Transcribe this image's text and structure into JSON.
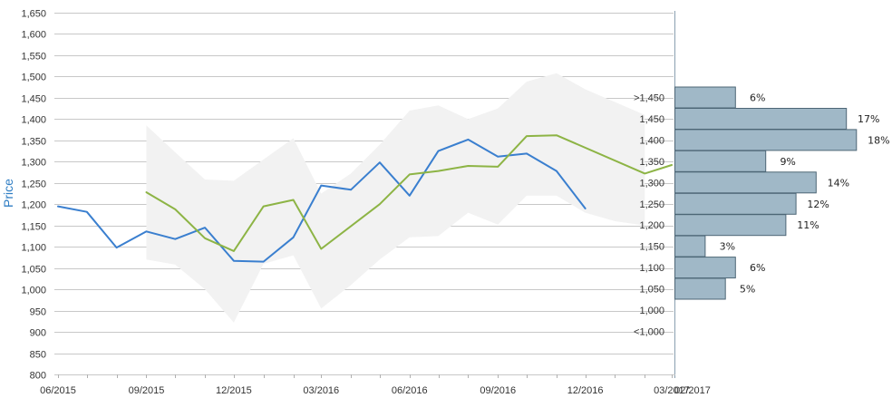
{
  "chart_data": {
    "type": "line",
    "ylabel": "Price",
    "ylim": [
      800,
      1650
    ],
    "y_ticks": [
      "800",
      "850",
      "900",
      "950",
      "1,000",
      "1,050",
      "1,100",
      "1,150",
      "1,200",
      "1,250",
      "1,300",
      "1,350",
      "1,400",
      "1,450",
      "1,500",
      "1,550",
      "1,600",
      "1,650"
    ],
    "x_ticks": [
      "06/2015",
      "09/2015",
      "12/2015",
      "03/2016",
      "06/2016",
      "09/2016",
      "12/2016",
      "03/2017"
    ],
    "x_extra_label": "02/2017",
    "x_start": "2015-06-01",
    "x_end": "2017-03-01",
    "grid": true,
    "colors": {
      "price": "#3a7fcf",
      "estimate": "#8db445",
      "band": "#f2f2f2",
      "hist_bar": "#a0b8c7",
      "hist_border": "#4d6676",
      "ylabel": "#2f7ec4"
    },
    "series": [
      {
        "key": "price",
        "x": [
          "2015-06",
          "2015-07",
          "2015-08",
          "2015-09",
          "2015-10",
          "2015-11",
          "2015-12",
          "2016-01",
          "2016-02",
          "2016-03",
          "2016-04",
          "2016-05",
          "2016-06",
          "2016-07",
          "2016-08",
          "2016-09",
          "2016-10",
          "2016-11",
          "2016-12"
        ],
        "values": [
          1195,
          1182,
          1098,
          1136,
          1118,
          1145,
          1067,
          1065,
          1122,
          1244,
          1234,
          1298,
          1220,
          1325,
          1352,
          1312,
          1319,
          1278,
          1190
        ]
      },
      {
        "key": "estimate",
        "x": [
          "2015-09",
          "2015-10",
          "2015-11",
          "2015-12",
          "2016-01",
          "2016-02",
          "2016-03",
          "2016-05",
          "2016-06",
          "2016-07",
          "2016-08",
          "2016-09",
          "2016-10",
          "2016-11",
          "2017-02",
          "2017-03"
        ],
        "values": [
          1228,
          1188,
          1120,
          1090,
          1195,
          1210,
          1095,
          1200,
          1270,
          1278,
          1290,
          1288,
          1360,
          1362,
          1272,
          1292
        ]
      }
    ],
    "band": {
      "x": [
        "2015-09",
        "2015-10",
        "2015-11",
        "2015-12",
        "2016-01",
        "2016-02",
        "2016-03",
        "2016-04",
        "2016-05",
        "2016-06",
        "2016-07",
        "2016-08",
        "2016-09",
        "2016-10",
        "2016-11",
        "2016-12",
        "2017-01",
        "2017-02"
      ],
      "upper": [
        1385,
        1322,
        1258,
        1255,
        1305,
        1355,
        1225,
        1272,
        1340,
        1420,
        1432,
        1400,
        1425,
        1488,
        1508,
        1470,
        1440,
        1410
      ],
      "lower": [
        1070,
        1058,
        1000,
        922,
        1060,
        1080,
        955,
        1010,
        1070,
        1122,
        1125,
        1180,
        1152,
        1220,
        1220,
        1180,
        1160,
        1150
      ]
    },
    "histogram": {
      "categories": [
        ">1,450",
        "1,450",
        "1,400",
        "1,350",
        "1,300",
        "1,250",
        "1,200",
        "1,150",
        "1,100",
        "1,050",
        "1,000",
        "<1,000"
      ],
      "values": [
        6,
        17,
        18,
        9,
        14,
        12,
        11,
        3,
        6,
        5,
        0,
        0
      ],
      "labels": [
        "6%",
        "17%",
        "18%",
        "9%",
        "14%",
        "12%",
        "11%",
        "3%",
        "6%",
        "5%",
        "",
        ""
      ]
    }
  }
}
